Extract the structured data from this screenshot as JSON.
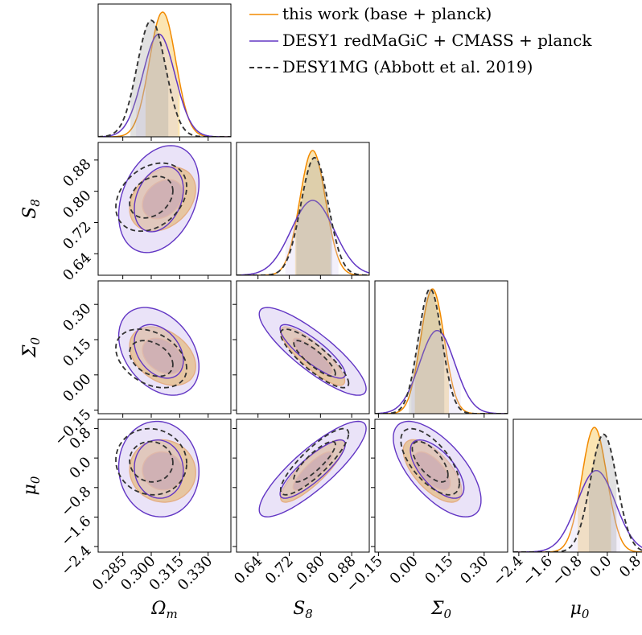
{
  "chart_data": {
    "type": "corner",
    "parameters": [
      {
        "key": "Om",
        "label": "Ω",
        "sub": "m",
        "range": [
          0.272,
          0.342
        ],
        "ticks": [
          0.285,
          0.3,
          0.315,
          0.33
        ],
        "tick_labels": [
          "0.285",
          "0.300",
          "0.315",
          "0.330"
        ]
      },
      {
        "key": "S8",
        "label": "S",
        "sub": "8",
        "range": [
          0.585,
          0.925
        ],
        "ticks": [
          0.64,
          0.72,
          0.8,
          0.88
        ],
        "tick_labels": [
          "0.64",
          "0.72",
          "0.80",
          "0.88"
        ]
      },
      {
        "key": "Sigma0",
        "label": "Σ",
        "sub": "0",
        "range": [
          -0.165,
          0.4
        ],
        "ticks": [
          -0.15,
          0.0,
          0.15,
          0.3
        ],
        "tick_labels": [
          "−0.15",
          "0.00",
          "0.15",
          "0.30"
        ]
      },
      {
        "key": "mu0",
        "label": "μ",
        "sub": "0",
        "range": [
          -2.55,
          1.05
        ],
        "ticks": [
          -2.4,
          -1.6,
          -0.8,
          0.0,
          0.8
        ],
        "tick_labels": [
          "−2.4",
          "−1.6",
          "−0.8",
          "0.0",
          "0.8"
        ]
      }
    ],
    "series": [
      {
        "name": "this work (base + planck)",
        "color": "#f28a00",
        "fill": "#f2a900",
        "style": "solid",
        "filled": true,
        "mean": {
          "Om": 0.306,
          "S8": 0.78,
          "Sigma0": 0.08,
          "mu0": -0.35
        },
        "sigma": {
          "Om": 0.007,
          "S8": 0.033,
          "Sigma0": 0.05,
          "mu0": 0.34
        },
        "interval_1d": {
          "Om": [
            0.297,
            0.315
          ],
          "S8": [
            0.735,
            0.826
          ],
          "Sigma0": [
            0.005,
            0.15
          ],
          "mu0": [
            -0.8,
            0.1
          ]
        }
      },
      {
        "name": "DESY1 redMaGiC + CMASS + planck",
        "color": "#6236c4",
        "fill": "#d8ccf2",
        "style": "solid",
        "filled": true,
        "mean": {
          "Om": 0.304,
          "S8": 0.78,
          "Sigma0": 0.1,
          "mu0": -0.3
        },
        "sigma": {
          "Om": 0.0085,
          "S8": 0.055,
          "Sigma0": 0.075,
          "mu0": 0.52
        },
        "interval_1d": {
          "Om": [
            0.292,
            0.314
          ],
          "S8": [
            0.71,
            0.846
          ],
          "Sigma0": [
            -0.01,
            0.2
          ],
          "mu0": [
            -1.0,
            0.35
          ]
        }
      },
      {
        "name": "DESY1MG (Abbott et al. 2019)",
        "color": "#333333",
        "fill": "#9a9a9a",
        "style": "dashed",
        "filled": false,
        "mean": {
          "Om": 0.3,
          "S8": 0.785,
          "Sigma0": 0.07,
          "mu0": -0.1
        },
        "sigma": {
          "Om": 0.0075,
          "S8": 0.035,
          "Sigma0": 0.05,
          "mu0": 0.36
        },
        "interval_1d": {
          "Om": [
            0.289,
            0.309
          ],
          "S8": [
            0.738,
            0.83
          ],
          "Sigma0": [
            -0.02,
            0.13
          ],
          "mu0": [
            -0.5,
            0.25
          ]
        }
      }
    ],
    "correlations": {
      "Om|S8": 0.3,
      "Om|Sigma0": -0.35,
      "S8|Sigma0": -0.85,
      "Om|mu0": -0.05,
      "S8|mu0": 0.85,
      "Sigma0|mu0": -0.65
    },
    "contour_levels_sigma": [
      1.52,
      2.49
    ],
    "legend": {
      "placement": "top-right"
    }
  }
}
